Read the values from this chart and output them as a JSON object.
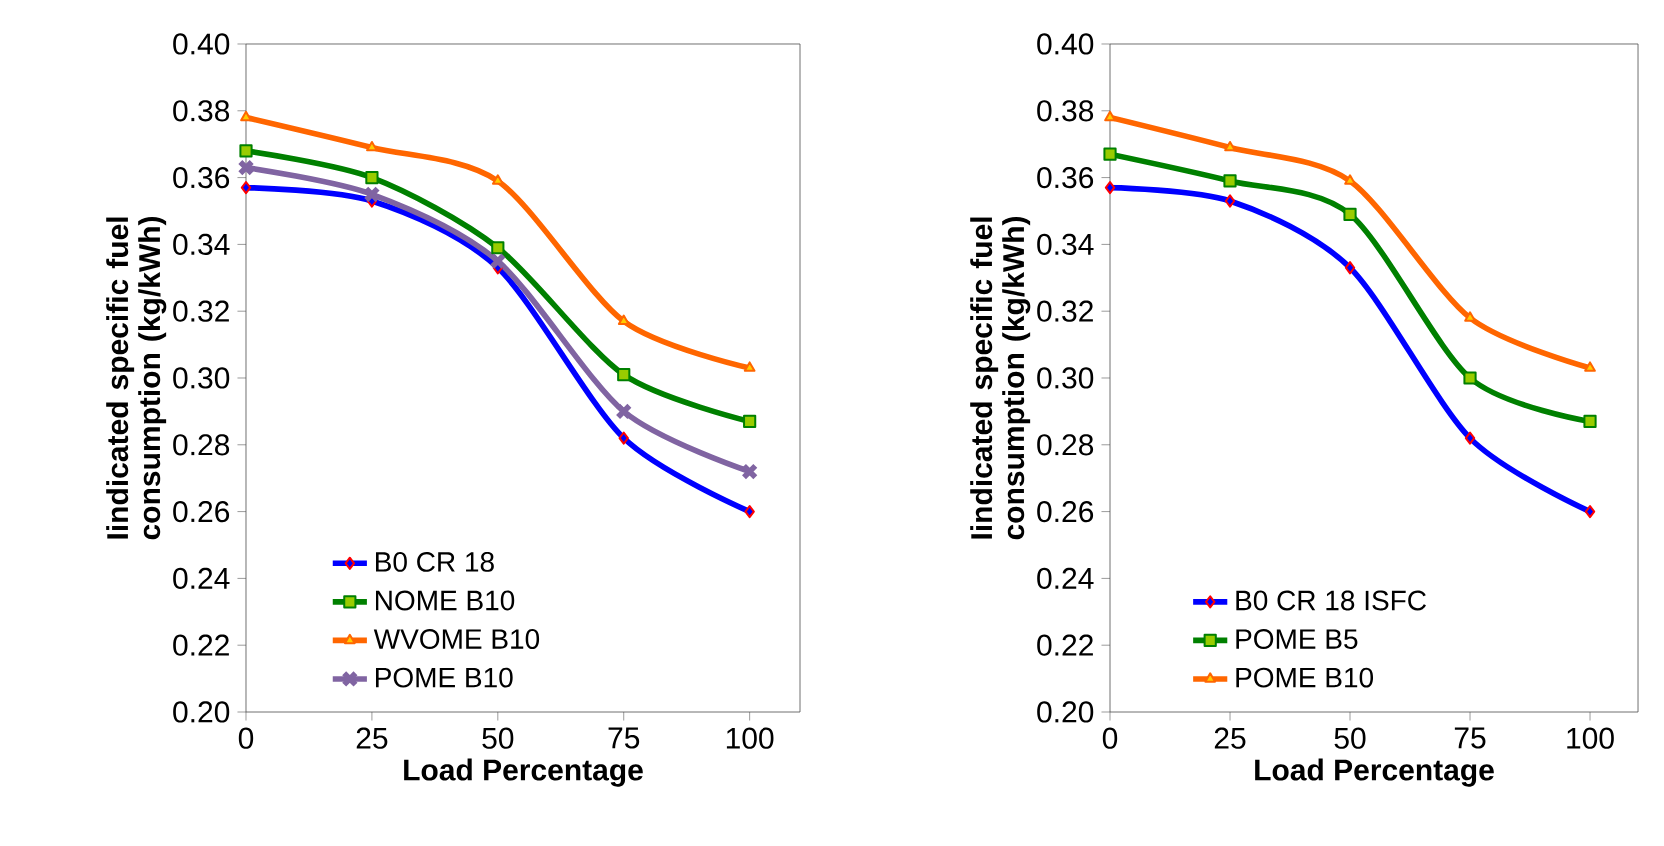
{
  "chart_data": [
    {
      "type": "line",
      "xlabel": "Load Percentage",
      "ylabel": "Iindicated specific fuel consumption (kg/kWh)",
      "x": [
        0,
        25,
        50,
        75,
        100
      ],
      "xlim": [
        0,
        110
      ],
      "xticks": [
        0,
        25,
        50,
        75,
        100
      ],
      "ylim": [
        0.2,
        0.4
      ],
      "yticks": [
        {
          "value": 0.2,
          "label": "0.20"
        },
        {
          "value": 0.22,
          "label": "0.22"
        },
        {
          "value": 0.24,
          "label": "0.24"
        },
        {
          "value": 0.26,
          "label": "0.26"
        },
        {
          "value": 0.28,
          "label": "0.28"
        },
        {
          "value": 0.3,
          "label": "0.30"
        },
        {
          "value": 0.32,
          "label": "0.32"
        },
        {
          "value": 0.34,
          "label": "0.34"
        },
        {
          "value": 0.36,
          "label": "0.36"
        },
        {
          "value": 0.38,
          "label": "0.38"
        },
        {
          "value": 0.4,
          "label": "0.40"
        }
      ],
      "legend": "bottom left",
      "grid": false,
      "series": [
        {
          "name": "B0 CR 18",
          "color": "#0000ff",
          "marker": "diamond",
          "values": [
            0.357,
            0.353,
            0.333,
            0.282,
            0.26
          ]
        },
        {
          "name": "NOME B10",
          "color": "#008000",
          "marker": "square",
          "values": [
            0.368,
            0.36,
            0.339,
            0.301,
            0.287
          ]
        },
        {
          "name": "WVOME B10",
          "color": "#ff6600",
          "marker": "triangle",
          "values": [
            0.378,
            0.369,
            0.359,
            0.317,
            0.303
          ]
        },
        {
          "name": "POME B10",
          "color": "#8064a2",
          "marker": "cross",
          "values": [
            0.363,
            0.355,
            0.335,
            0.29,
            0.272
          ]
        }
      ]
    },
    {
      "type": "line",
      "xlabel": "Load Percentage",
      "ylabel": "Iindicated specific fuel consumption (kg/kWh)",
      "x": [
        0,
        25,
        50,
        75,
        100
      ],
      "xlim": [
        0,
        110
      ],
      "xticks": [
        0,
        25,
        50,
        75,
        100
      ],
      "ylim": [
        0.2,
        0.4
      ],
      "yticks": [
        {
          "value": 0.2,
          "label": "0.20"
        },
        {
          "value": 0.22,
          "label": "0.22"
        },
        {
          "value": 0.24,
          "label": "0.24"
        },
        {
          "value": 0.26,
          "label": "0.26"
        },
        {
          "value": 0.28,
          "label": "0.28"
        },
        {
          "value": 0.3,
          "label": "0.30"
        },
        {
          "value": 0.32,
          "label": "0.32"
        },
        {
          "value": 0.34,
          "label": "0.34"
        },
        {
          "value": 0.36,
          "label": "0.36"
        },
        {
          "value": 0.38,
          "label": "0.38"
        },
        {
          "value": 0.4,
          "label": "0.40"
        }
      ],
      "legend": "bottom left",
      "grid": false,
      "series": [
        {
          "name": "B0 CR 18 ISFC",
          "color": "#0000ff",
          "marker": "diamond",
          "values": [
            0.357,
            0.353,
            0.333,
            0.282,
            0.26
          ]
        },
        {
          "name": "POME B5",
          "color": "#008000",
          "marker": "square",
          "values": [
            0.367,
            0.359,
            0.349,
            0.3,
            0.287
          ]
        },
        {
          "name": "POME B10",
          "color": "#ff6600",
          "marker": "triangle",
          "values": [
            0.378,
            0.369,
            0.359,
            0.318,
            0.303
          ]
        }
      ]
    }
  ]
}
